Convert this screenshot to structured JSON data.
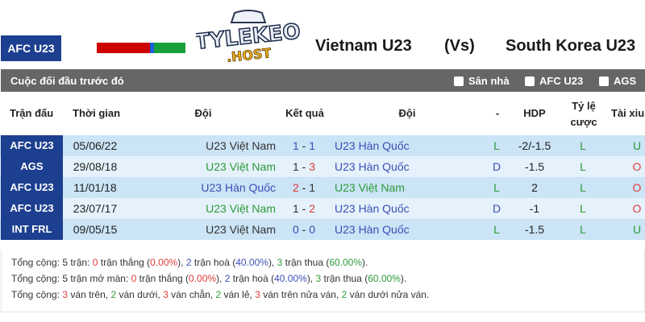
{
  "header": {
    "league": "AFC U23",
    "flag_colors": [
      "#cc0000",
      "#1f5fd6",
      "#16a03c"
    ],
    "logo_text": "TYLEKEO .HOST",
    "home_team": "Vietnam U23",
    "vs": "(Vs)",
    "away_team": "South Korea U23"
  },
  "section": {
    "title": "Cuộc đối đầu trước đó",
    "filters": [
      {
        "label": "Sân nhà",
        "checked": false
      },
      {
        "label": "AFC U23",
        "checked": false
      },
      {
        "label": "AGS",
        "checked": false
      }
    ]
  },
  "columns": [
    "Trận đấu",
    "Thời gian",
    "Đội",
    "Kết quả",
    "Đội",
    "-",
    "HDP",
    "Tỷ lệ cược",
    "Tài xiu"
  ],
  "colors": {
    "green": "#2e9a3a",
    "blue": "#3a4fb5",
    "red": "#e03a3a",
    "dark": "#333333",
    "row_a": "#cbe4f6",
    "row_b": "#e5f2fb"
  },
  "rows": [
    {
      "league": "AFC U23",
      "date": "05/06/22",
      "home": "U23 Việt Nam",
      "home_color": "dark",
      "score_home": "1",
      "score_home_color": "blue",
      "score_away": "1",
      "score_away_color": "blue",
      "away": "U23 Hàn Quốc",
      "away_color": "blue",
      "result": "L",
      "result_color": "green",
      "hdp": "-2/-1.5",
      "odds": "L",
      "odds_color": "green",
      "ou": "U",
      "ou_color": "green"
    },
    {
      "league": "AGS",
      "date": "29/08/18",
      "home": "U23 Việt Nam",
      "home_color": "green",
      "score_home": "1",
      "score_home_color": "dark",
      "score_away": "3",
      "score_away_color": "red",
      "away": "U23 Hàn Quốc",
      "away_color": "blue",
      "result": "D",
      "result_color": "blue",
      "hdp": "-1.5",
      "odds": "L",
      "odds_color": "green",
      "ou": "O",
      "ou_color": "red"
    },
    {
      "league": "AFC U23",
      "date": "11/01/18",
      "home": "U23 Hàn Quốc",
      "home_color": "blue",
      "score_home": "2",
      "score_home_color": "red",
      "score_away": "1",
      "score_away_color": "dark",
      "away": "U23 Việt Nam",
      "away_color": "green",
      "result": "L",
      "result_color": "green",
      "hdp": "2",
      "odds": "L",
      "odds_color": "green",
      "ou": "O",
      "ou_color": "red"
    },
    {
      "league": "AFC U23",
      "date": "23/07/17",
      "home": "U23 Việt Nam",
      "home_color": "green",
      "score_home": "1",
      "score_home_color": "dark",
      "score_away": "2",
      "score_away_color": "red",
      "away": "U23 Hàn Quốc",
      "away_color": "blue",
      "result": "D",
      "result_color": "blue",
      "hdp": "-1",
      "odds": "L",
      "odds_color": "green",
      "ou": "O",
      "ou_color": "red"
    },
    {
      "league": "INT FRL",
      "date": "09/05/15",
      "home": "U23 Việt Nam",
      "home_color": "dark",
      "score_home": "0",
      "score_home_color": "blue",
      "score_away": "0",
      "score_away_color": "blue",
      "away": "U23 Hàn Quốc",
      "away_color": "blue",
      "result": "L",
      "result_color": "green",
      "hdp": "-1.5",
      "odds": "L",
      "odds_color": "green",
      "ou": "U",
      "ou_color": "green"
    }
  ],
  "summary": [
    [
      [
        "Tổng cộng: 5 trận: ",
        "dark"
      ],
      [
        "0",
        "red"
      ],
      [
        " trận thắng (",
        "dark"
      ],
      [
        "0.00%",
        "red"
      ],
      [
        "), ",
        "dark"
      ],
      [
        "2",
        "blue"
      ],
      [
        " trận hoà (",
        "dark"
      ],
      [
        "40.00%",
        "blue"
      ],
      [
        "), ",
        "dark"
      ],
      [
        "3",
        "green"
      ],
      [
        " trận thua (",
        "dark"
      ],
      [
        "60.00%",
        "green"
      ],
      [
        ").",
        "dark"
      ]
    ],
    [
      [
        "Tổng cộng: 5 trận mở màn: ",
        "dark"
      ],
      [
        "0",
        "red"
      ],
      [
        " trận thắng (",
        "dark"
      ],
      [
        "0.00%",
        "red"
      ],
      [
        "), ",
        "dark"
      ],
      [
        "2",
        "blue"
      ],
      [
        " trận hoà (",
        "dark"
      ],
      [
        "40.00%",
        "blue"
      ],
      [
        "), ",
        "dark"
      ],
      [
        "3",
        "green"
      ],
      [
        " trận thua (",
        "dark"
      ],
      [
        "60.00%",
        "green"
      ],
      [
        ").",
        "dark"
      ]
    ],
    [
      [
        "Tổng cộng: ",
        "dark"
      ],
      [
        "3",
        "red"
      ],
      [
        " ván trên, ",
        "dark"
      ],
      [
        "2",
        "green"
      ],
      [
        " ván dưới, ",
        "dark"
      ],
      [
        "3",
        "red"
      ],
      [
        " ván chẵn, ",
        "dark"
      ],
      [
        "2",
        "green"
      ],
      [
        " ván lẻ, ",
        "dark"
      ],
      [
        "3",
        "red"
      ],
      [
        " ván trên nửa ván, ",
        "dark"
      ],
      [
        "2",
        "green"
      ],
      [
        " ván dưới nửa ván.",
        "dark"
      ]
    ]
  ]
}
